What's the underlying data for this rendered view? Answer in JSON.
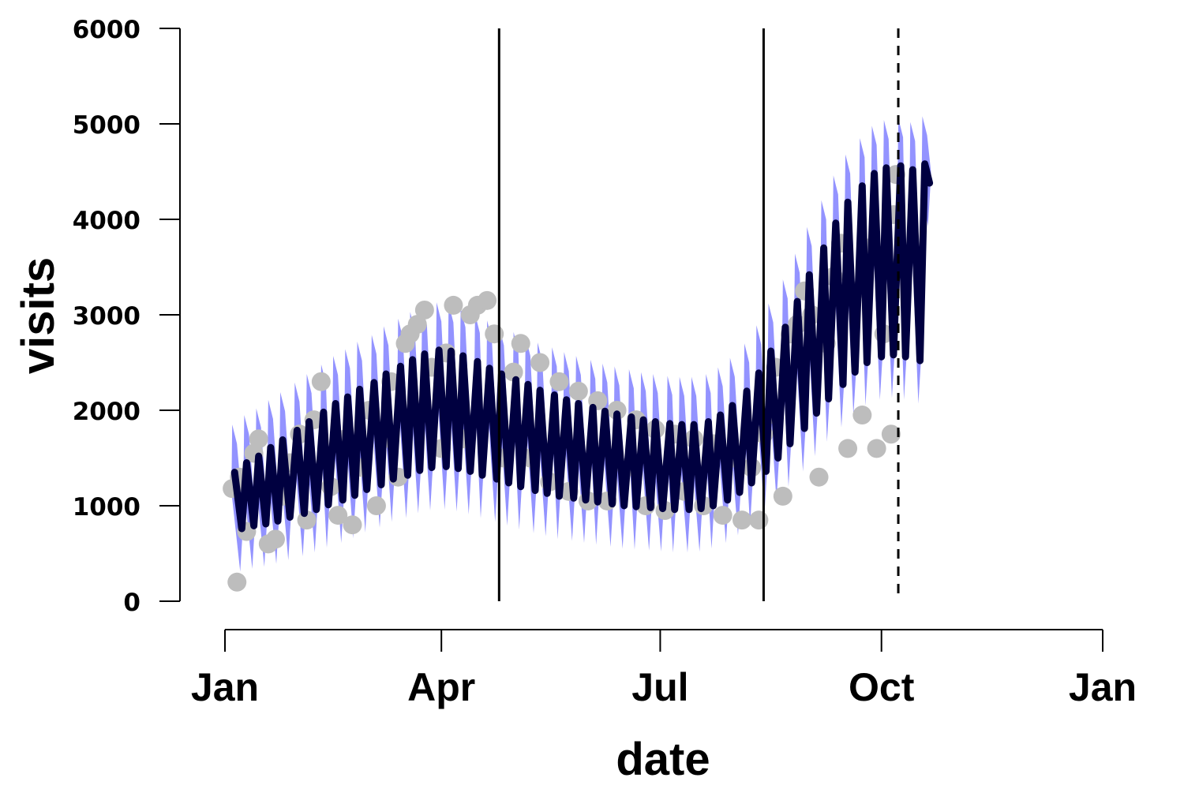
{
  "chart_data": {
    "type": "line",
    "title": "",
    "xlabel": "date",
    "ylabel": "visits",
    "ylim": [
      0,
      6000
    ],
    "xlim": [
      "2023-01-01",
      "2024-01-01"
    ],
    "yticks": [
      0,
      1000,
      2000,
      3000,
      4000,
      5000,
      6000
    ],
    "xticks": [
      {
        "date": "2023-01-01",
        "label": "Jan"
      },
      {
        "date": "2023-04-01",
        "label": "Apr"
      },
      {
        "date": "2023-07-01",
        "label": "Jul"
      },
      {
        "date": "2023-10-01",
        "label": "Oct"
      },
      {
        "date": "2024-01-01",
        "label": "Jan"
      }
    ],
    "grid": false,
    "legend": "none",
    "colors": {
      "observed": "#bdbdbd",
      "fit_line": "#000040",
      "interval": "#8080ff"
    },
    "vertical_lines": [
      {
        "date": "2023-04-25",
        "style": "solid"
      },
      {
        "date": "2023-08-13",
        "style": "solid"
      },
      {
        "date": "2023-10-08",
        "style": "dashed"
      }
    ],
    "series": [
      {
        "role": "prediction-interval",
        "periodicity_days": 7,
        "start": "2023-01-05",
        "end": "2023-10-21",
        "width": 500
      },
      {
        "role": "fitted-weekly",
        "start": "2023-01-05",
        "end": "2023-10-21",
        "points": [
          [
            "2023-01-05",
            1350
          ],
          [
            "2023-01-08",
            760
          ],
          [
            "2023-01-10",
            1450
          ],
          [
            "2023-01-13",
            790
          ],
          [
            "2023-01-15",
            1520
          ],
          [
            "2023-01-18",
            810
          ],
          [
            "2023-01-20",
            1610
          ],
          [
            "2023-01-23",
            840
          ],
          [
            "2023-01-25",
            1690
          ],
          [
            "2023-01-28",
            880
          ],
          [
            "2023-01-31",
            1790
          ],
          [
            "2023-02-03",
            920
          ],
          [
            "2023-02-05",
            1880
          ],
          [
            "2023-02-08",
            960
          ],
          [
            "2023-02-11",
            1980
          ],
          [
            "2023-02-13",
            1010
          ],
          [
            "2023-02-16",
            2070
          ],
          [
            "2023-02-19",
            1060
          ],
          [
            "2023-02-21",
            2140
          ],
          [
            "2023-02-24",
            1110
          ],
          [
            "2023-02-26",
            2220
          ],
          [
            "2023-03-01",
            1170
          ],
          [
            "2023-03-04",
            2290
          ],
          [
            "2023-03-07",
            1220
          ],
          [
            "2023-03-09",
            2380
          ],
          [
            "2023-03-12",
            1280
          ],
          [
            "2023-03-15",
            2460
          ],
          [
            "2023-03-18",
            1320
          ],
          [
            "2023-03-20",
            2530
          ],
          [
            "2023-03-23",
            1370
          ],
          [
            "2023-03-25",
            2590
          ],
          [
            "2023-03-28",
            1400
          ],
          [
            "2023-03-31",
            2630
          ],
          [
            "2023-04-03",
            1410
          ],
          [
            "2023-04-05",
            2620
          ],
          [
            "2023-04-08",
            1390
          ],
          [
            "2023-04-10",
            2570
          ],
          [
            "2023-04-13",
            1360
          ],
          [
            "2023-04-16",
            2510
          ],
          [
            "2023-04-18",
            1320
          ],
          [
            "2023-04-21",
            2440
          ],
          [
            "2023-04-24",
            1280
          ],
          [
            "2023-04-26",
            2380
          ],
          [
            "2023-04-29",
            1240
          ],
          [
            "2023-05-02",
            2320
          ],
          [
            "2023-05-04",
            1200
          ],
          [
            "2023-05-07",
            2270
          ],
          [
            "2023-05-10",
            1160
          ],
          [
            "2023-05-12",
            2210
          ],
          [
            "2023-05-15",
            1130
          ],
          [
            "2023-05-18",
            2160
          ],
          [
            "2023-05-20",
            1100
          ],
          [
            "2023-05-23",
            2110
          ],
          [
            "2023-05-26",
            1080
          ],
          [
            "2023-05-28",
            2070
          ],
          [
            "2023-05-31",
            1060
          ],
          [
            "2023-06-03",
            2030
          ],
          [
            "2023-06-05",
            1040
          ],
          [
            "2023-06-08",
            1990
          ],
          [
            "2023-06-11",
            1020
          ],
          [
            "2023-06-13",
            1960
          ],
          [
            "2023-06-16",
            1000
          ],
          [
            "2023-06-19",
            1930
          ],
          [
            "2023-06-21",
            990
          ],
          [
            "2023-06-24",
            1900
          ],
          [
            "2023-06-27",
            980
          ],
          [
            "2023-06-29",
            1880
          ],
          [
            "2023-07-02",
            970
          ],
          [
            "2023-07-05",
            1860
          ],
          [
            "2023-07-07",
            960
          ],
          [
            "2023-07-10",
            1850
          ],
          [
            "2023-07-13",
            960
          ],
          [
            "2023-07-15",
            1850
          ],
          [
            "2023-07-18",
            970
          ],
          [
            "2023-07-21",
            1880
          ],
          [
            "2023-07-23",
            1000
          ],
          [
            "2023-07-26",
            1950
          ],
          [
            "2023-07-29",
            1060
          ],
          [
            "2023-07-31",
            2050
          ],
          [
            "2023-08-03",
            1140
          ],
          [
            "2023-08-06",
            2200
          ],
          [
            "2023-08-08",
            1240
          ],
          [
            "2023-08-11",
            2390
          ],
          [
            "2023-08-14",
            1360
          ],
          [
            "2023-08-16",
            2620
          ],
          [
            "2023-08-19",
            1500
          ],
          [
            "2023-08-22",
            2870
          ],
          [
            "2023-08-24",
            1650
          ],
          [
            "2023-08-27",
            3140
          ],
          [
            "2023-08-30",
            1810
          ],
          [
            "2023-09-01",
            3420
          ],
          [
            "2023-09-04",
            1970
          ],
          [
            "2023-09-07",
            3700
          ],
          [
            "2023-09-09",
            2120
          ],
          [
            "2023-09-12",
            3960
          ],
          [
            "2023-09-15",
            2270
          ],
          [
            "2023-09-17",
            4180
          ],
          [
            "2023-09-20",
            2400
          ],
          [
            "2023-09-23",
            4350
          ],
          [
            "2023-09-25",
            2500
          ],
          [
            "2023-09-28",
            4480
          ],
          [
            "2023-10-01",
            2560
          ],
          [
            "2023-10-03",
            4540
          ],
          [
            "2023-10-06",
            2580
          ],
          [
            "2023-10-09",
            4560
          ],
          [
            "2023-10-11",
            2560
          ],
          [
            "2023-10-14",
            4520
          ],
          [
            "2023-10-17",
            2520
          ],
          [
            "2023-10-19",
            4580
          ],
          [
            "2023-10-21",
            4380
          ]
        ]
      },
      {
        "role": "observed-points",
        "points": [
          [
            "2023-01-06",
            200
          ],
          [
            "2023-01-04",
            1180
          ],
          [
            "2023-01-07",
            1300
          ],
          [
            "2023-01-10",
            730
          ],
          [
            "2023-01-13",
            1550
          ],
          [
            "2023-01-15",
            1700
          ],
          [
            "2023-01-19",
            600
          ],
          [
            "2023-01-22",
            650
          ],
          [
            "2023-01-25",
            1100
          ],
          [
            "2023-01-28",
            1450
          ],
          [
            "2023-02-01",
            1750
          ],
          [
            "2023-02-04",
            850
          ],
          [
            "2023-02-07",
            1900
          ],
          [
            "2023-02-10",
            2300
          ],
          [
            "2023-02-14",
            1200
          ],
          [
            "2023-02-17",
            900
          ],
          [
            "2023-02-20",
            1700
          ],
          [
            "2023-02-23",
            800
          ],
          [
            "2023-02-27",
            1400
          ],
          [
            "2023-03-02",
            2000
          ],
          [
            "2023-03-05",
            1000
          ],
          [
            "2023-03-08",
            1700
          ],
          [
            "2023-03-11",
            2300
          ],
          [
            "2023-03-14",
            1300
          ],
          [
            "2023-03-17",
            2700
          ],
          [
            "2023-03-19",
            2800
          ],
          [
            "2023-03-22",
            2900
          ],
          [
            "2023-03-25",
            3050
          ],
          [
            "2023-03-28",
            2450
          ],
          [
            "2023-04-01",
            1600
          ],
          [
            "2023-04-03",
            2600
          ],
          [
            "2023-04-06",
            3100
          ],
          [
            "2023-04-10",
            1700
          ],
          [
            "2023-04-13",
            3000
          ],
          [
            "2023-04-16",
            3100
          ],
          [
            "2023-04-20",
            3150
          ],
          [
            "2023-04-23",
            2800
          ],
          [
            "2023-04-27",
            1500
          ],
          [
            "2023-05-01",
            2400
          ],
          [
            "2023-05-04",
            2700
          ],
          [
            "2023-05-08",
            1500
          ],
          [
            "2023-05-12",
            2500
          ],
          [
            "2023-05-16",
            1250
          ],
          [
            "2023-05-20",
            2300
          ],
          [
            "2023-05-24",
            1150
          ],
          [
            "2023-05-28",
            2200
          ],
          [
            "2023-06-01",
            1050
          ],
          [
            "2023-06-05",
            2100
          ],
          [
            "2023-06-09",
            1050
          ],
          [
            "2023-06-13",
            2000
          ],
          [
            "2023-06-17",
            1400
          ],
          [
            "2023-06-21",
            1900
          ],
          [
            "2023-06-25",
            1000
          ],
          [
            "2023-06-29",
            1800
          ],
          [
            "2023-07-03",
            950
          ],
          [
            "2023-07-07",
            1750
          ],
          [
            "2023-07-11",
            1150
          ],
          [
            "2023-07-15",
            1700
          ],
          [
            "2023-07-19",
            1000
          ],
          [
            "2023-07-23",
            1650
          ],
          [
            "2023-07-27",
            900
          ],
          [
            "2023-07-31",
            1500
          ],
          [
            "2023-08-04",
            850
          ],
          [
            "2023-08-08",
            1400
          ],
          [
            "2023-08-11",
            850
          ],
          [
            "2023-08-13",
            1750
          ],
          [
            "2023-08-15",
            1950
          ],
          [
            "2023-08-18",
            2450
          ],
          [
            "2023-08-21",
            1100
          ],
          [
            "2023-08-24",
            2800
          ],
          [
            "2023-08-27",
            2900
          ],
          [
            "2023-08-30",
            3250
          ],
          [
            "2023-09-02",
            3000
          ],
          [
            "2023-09-05",
            1300
          ],
          [
            "2023-09-08",
            2700
          ],
          [
            "2023-09-11",
            3400
          ],
          [
            "2023-09-14",
            3750
          ],
          [
            "2023-09-17",
            1600
          ],
          [
            "2023-09-20",
            3250
          ],
          [
            "2023-09-23",
            1950
          ],
          [
            "2023-09-26",
            3700
          ],
          [
            "2023-09-29",
            1600
          ],
          [
            "2023-10-02",
            2800
          ],
          [
            "2023-10-05",
            1750
          ],
          [
            "2023-10-06",
            4050
          ],
          [
            "2023-10-07",
            4470
          ]
        ]
      }
    ]
  }
}
